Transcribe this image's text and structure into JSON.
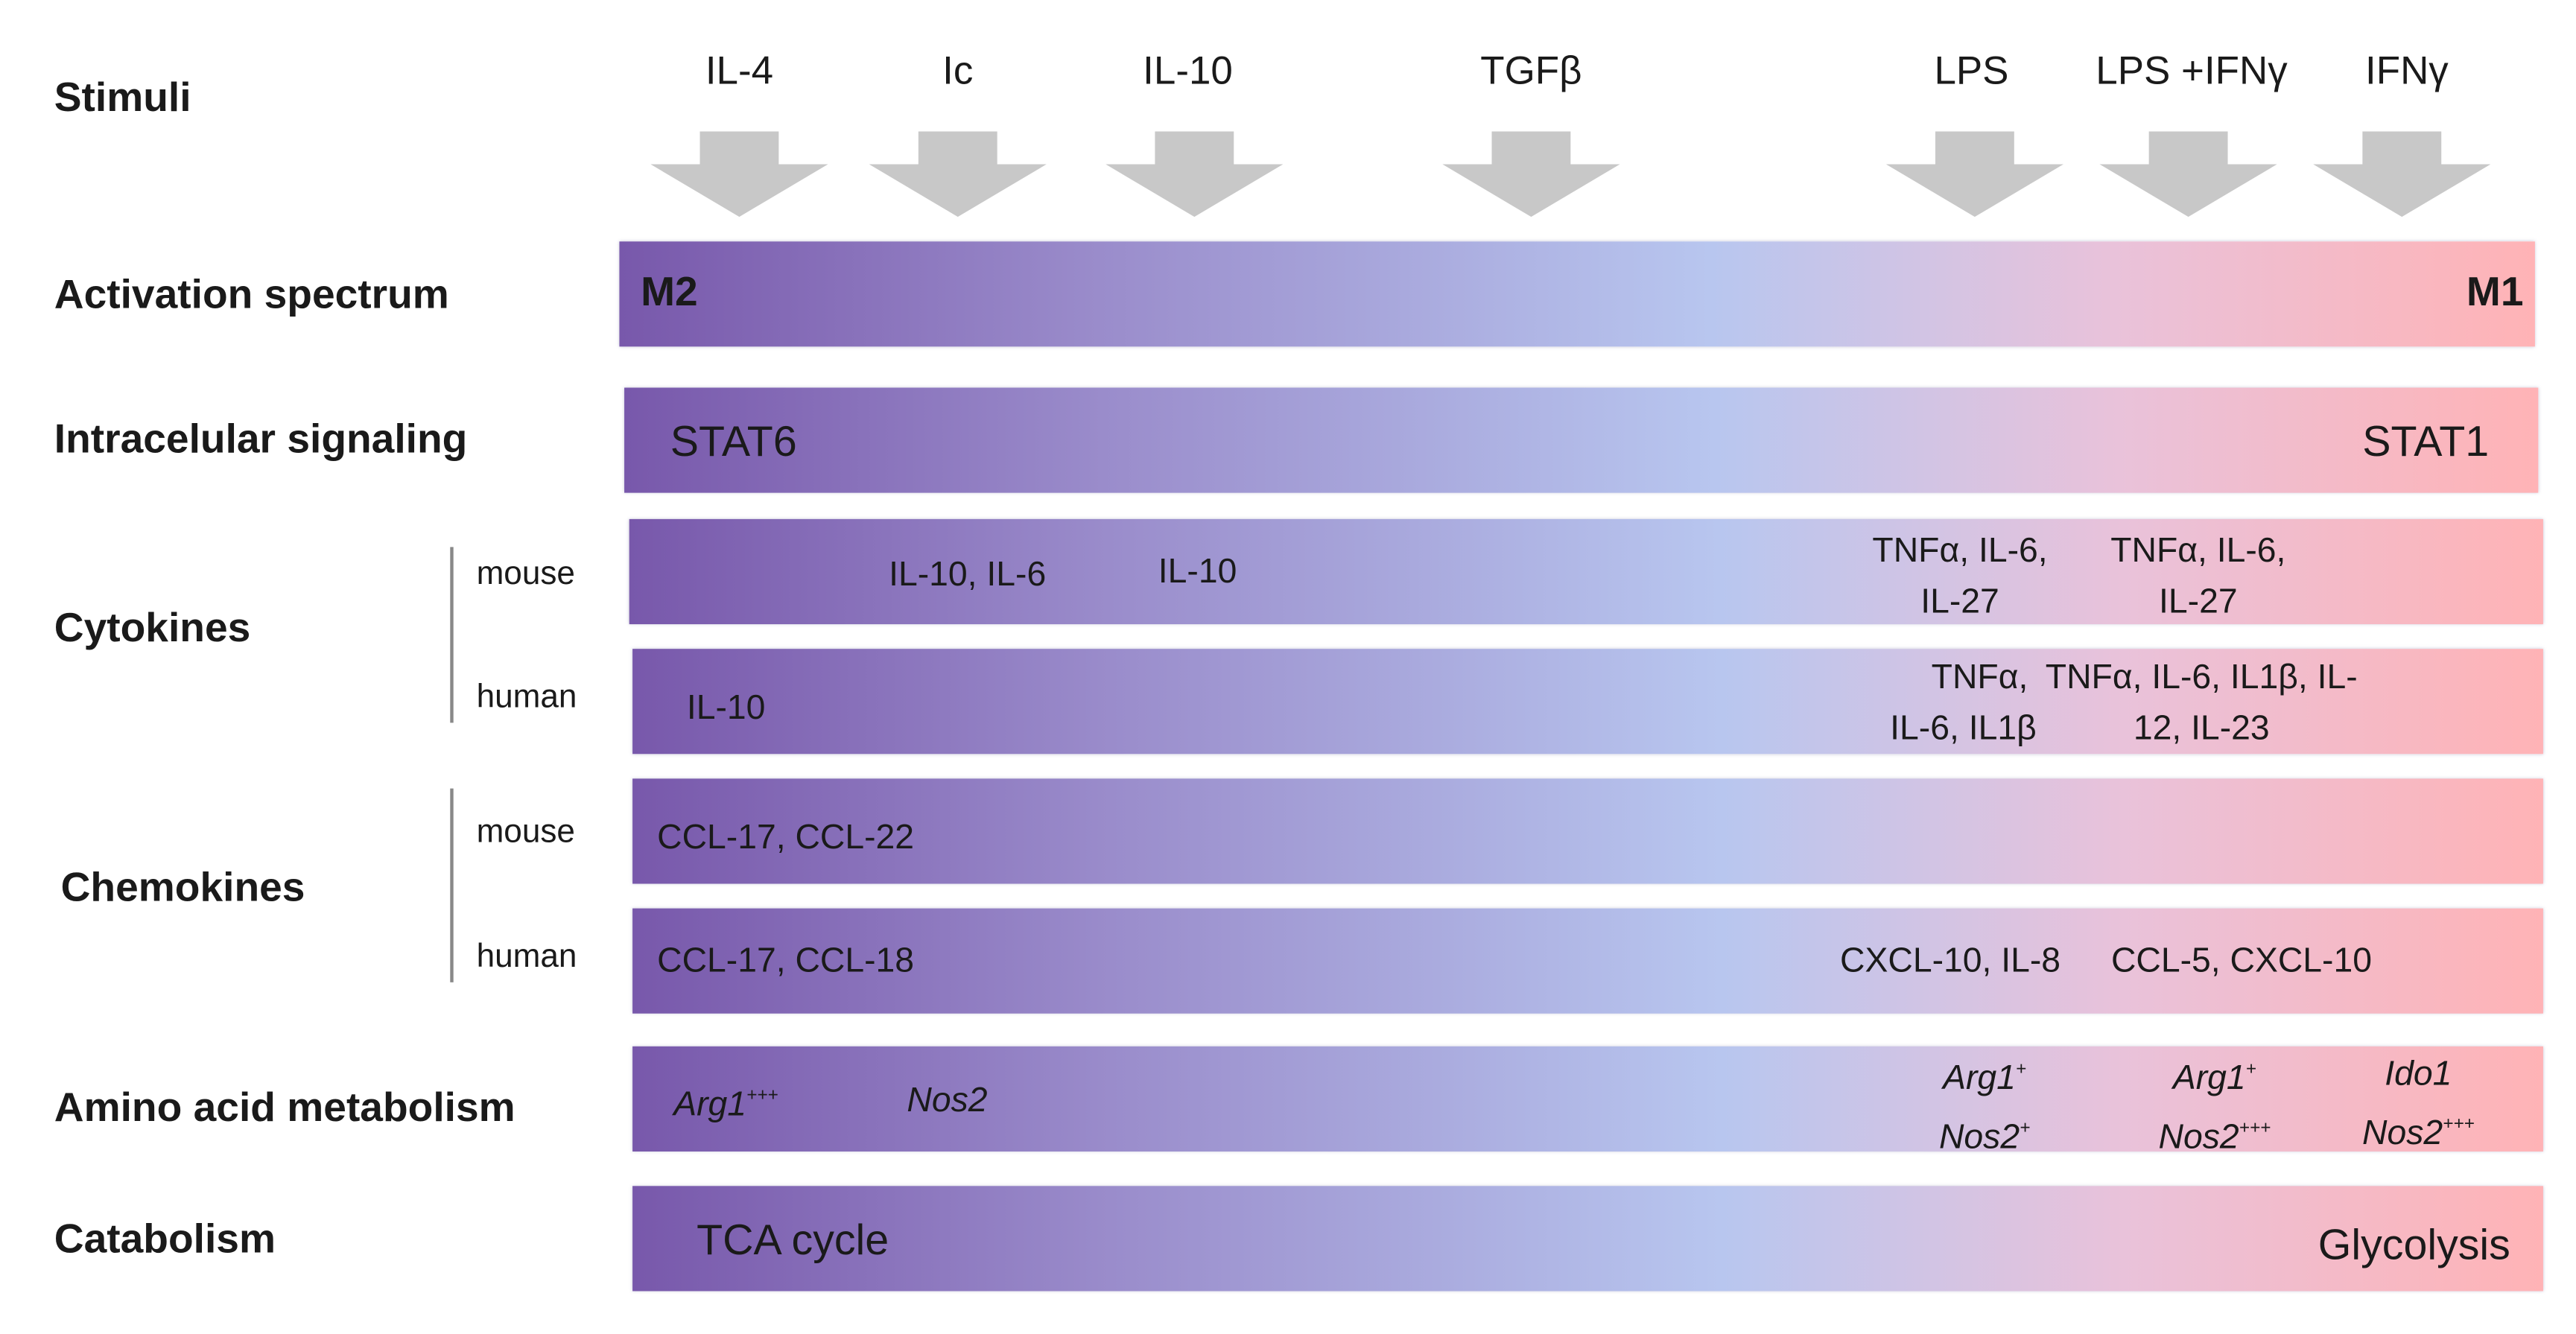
{
  "rows": {
    "stimuli": "Stimuli",
    "activation": "Activation spectrum",
    "signaling": "Intracelular signaling",
    "cytokines": "Cytokines",
    "chemokines": "Chemokines",
    "amino": "Amino acid metabolism",
    "catabolism": "Catabolism"
  },
  "species": {
    "mouse": "mouse",
    "human": "human"
  },
  "stimuli": [
    "IL-4",
    "Ic",
    "IL-10",
    "TGFβ",
    "LPS",
    "LPS +IFNγ",
    "IFNγ"
  ],
  "activation": {
    "left": "M2",
    "right": "M1"
  },
  "signaling": {
    "left": "STAT6",
    "right": "STAT1"
  },
  "cytokines": {
    "mouse": {
      "a": "IL-10, IL-6",
      "b": "IL-10",
      "c": [
        "TNFα, IL-6,",
        "IL-27"
      ],
      "d": [
        "TNFα, IL-6,",
        "IL-27"
      ]
    },
    "human": {
      "a": "IL-10",
      "c": [
        "TNFα,",
        "IL-6, IL1β"
      ],
      "d": [
        "TNFα, IL-6, IL1β, IL-",
        "12, IL-23"
      ]
    }
  },
  "chemokines": {
    "mouse": {
      "a": "CCL-17, CCL-22"
    },
    "human": {
      "a": "CCL-17, CCL-18",
      "c": "CXCL-10, IL-8",
      "d": "CCL-5, CXCL-10"
    }
  },
  "amino": {
    "a": {
      "gene": "Arg1",
      "sup": "+++"
    },
    "b": {
      "gene": "Nos2"
    },
    "c": [
      {
        "gene": "Arg1",
        "sup": "+"
      },
      {
        "gene": "Nos2",
        "sup": "+"
      }
    ],
    "d": [
      {
        "gene": "Arg1",
        "sup": "+"
      },
      {
        "gene": "Nos2",
        "sup": "+++"
      }
    ],
    "e": [
      {
        "gene": "Ido1"
      },
      {
        "gene": "Nos2",
        "sup": "+++"
      }
    ]
  },
  "catabolism": {
    "left": "TCA cycle",
    "right": "Glycolysis"
  },
  "colors": {
    "m2": "#7858ab",
    "mid": "#b8c6ef",
    "m1": "#ffb3b6",
    "arrow": "#c8c8c8"
  }
}
